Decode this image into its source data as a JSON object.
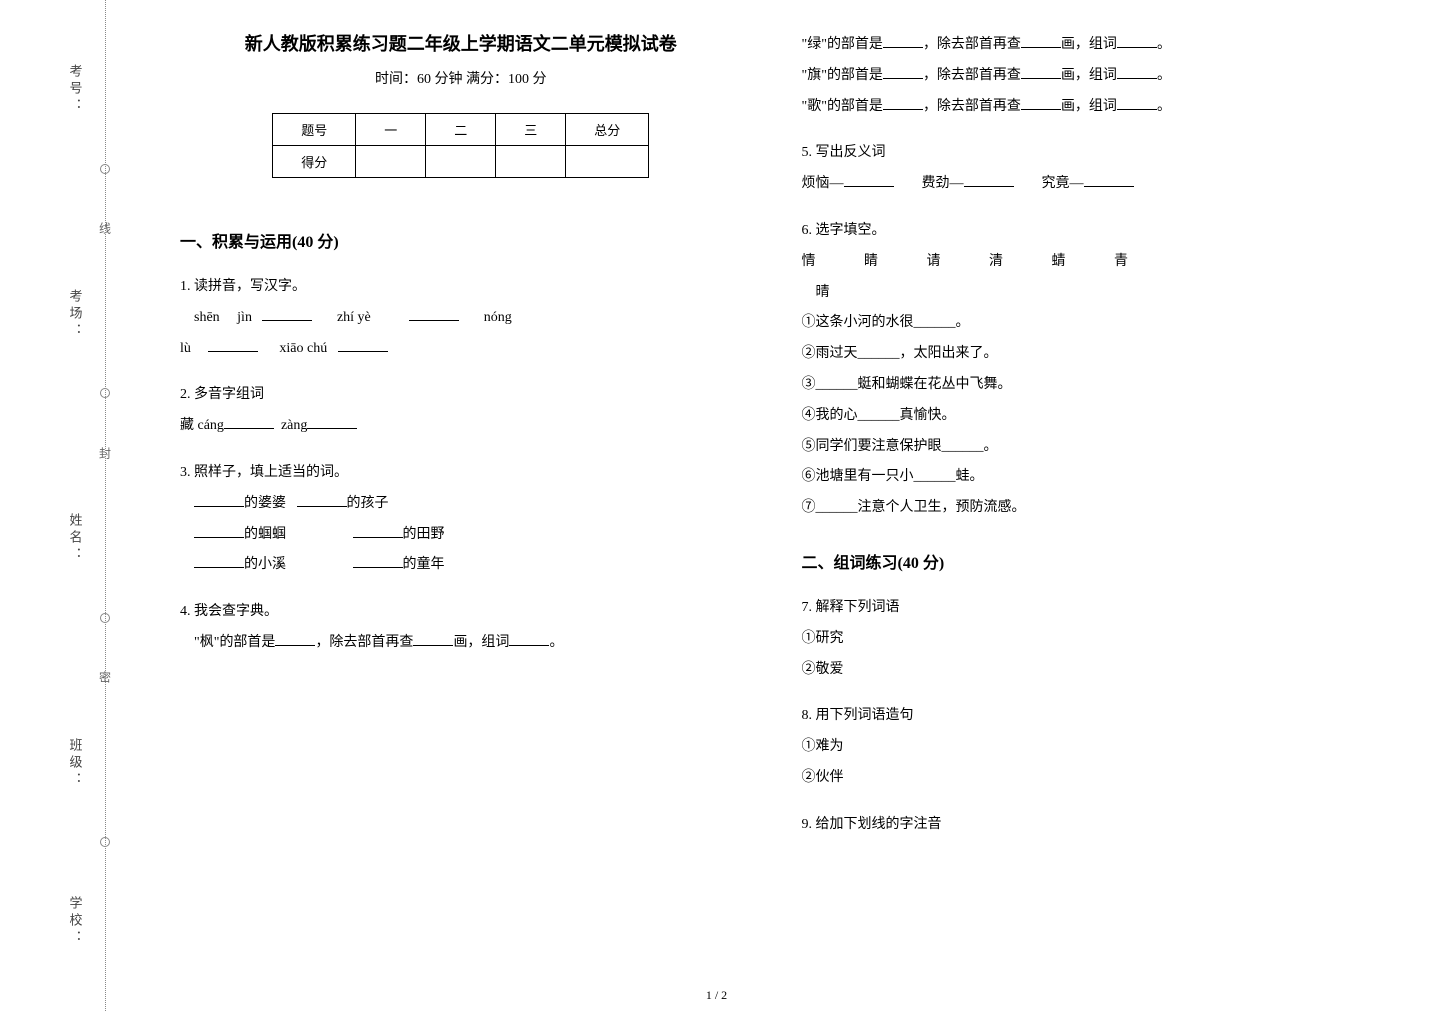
{
  "binding": {
    "labels": [
      "考号：",
      "考场：",
      "姓名：",
      "班级：",
      "学校："
    ],
    "seal_texts": [
      "线",
      "封",
      "密"
    ]
  },
  "header": {
    "title": "新人教版积累练习题二年级上学期语文二单元模拟试卷",
    "subtitle": "时间：60 分钟   满分：100 分"
  },
  "score_table": {
    "headers": [
      "题号",
      "一",
      "二",
      "三",
      "总分"
    ],
    "row_label": "得分"
  },
  "sections": {
    "s1": {
      "title": "一、积累与运用(40 分)",
      "q1": {
        "label": "1.  读拼音，写汉字。",
        "pinyin": [
          "shēn",
          "jìn",
          "zhí  yè",
          "nóng",
          "lù",
          "xiāo chú"
        ]
      },
      "q2": {
        "label": "2.  多音字组词",
        "text_prefix": "藏 cáng",
        "text_mid": "zàng"
      },
      "q3": {
        "label": "3.  照样子，填上适当的词。",
        "items": [
          "的婆婆",
          "的孩子",
          "的蝈蝈",
          "的田野",
          "的小溪",
          "的童年"
        ]
      },
      "q4": {
        "label": "4.  我会查字典。",
        "lines": [
          {
            "char": "枫",
            "p1": "的部首是",
            "p2": "，除去部首再查",
            "p3": "画，组词",
            "p4": "。"
          },
          {
            "char": "绿",
            "p1": "的部首是",
            "p2": "，除去部首再查",
            "p3": "画，组词",
            "p4": "。"
          },
          {
            "char": "旗",
            "p1": "的部首是",
            "p2": "，除去部首再查",
            "p3": "画，组词",
            "p4": "。"
          },
          {
            "char": "歌",
            "p1": "的部首是",
            "p2": "，除去部首再查",
            "p3": "画，组词",
            "p4": "。"
          }
        ]
      },
      "q5": {
        "label": "5.  写出反义词",
        "items": [
          "烦恼—",
          "费劲—",
          "究竟—"
        ]
      },
      "q6": {
        "label": "6.  选字填空。",
        "chars": [
          "情",
          "睛",
          "请",
          "清",
          "蜻",
          "青",
          "晴"
        ],
        "lines": [
          "①这条小河的水很______。",
          "②雨过天______，太阳出来了。",
          "③______蜓和蝴蝶在花丛中飞舞。",
          "④我的心______真愉快。",
          "⑤同学们要注意保护眼______。",
          "⑥池塘里有一只小______蛙。",
          "⑦______注意个人卫生，预防流感。"
        ]
      }
    },
    "s2": {
      "title": "二、组词练习(40 分)",
      "q7": {
        "label": "7.  解释下列词语",
        "items": [
          "①研究",
          "②敬爱"
        ]
      },
      "q8": {
        "label": "8.  用下列词语造句",
        "items": [
          "①难为",
          "②伙伴"
        ]
      },
      "q9": {
        "label": "9.  给加下划线的字注音"
      }
    }
  },
  "page_num": "1 / 2",
  "styling": {
    "title_fontsize": 18,
    "body_fontsize": 14,
    "section_fontsize": 16,
    "text_color": "#000000",
    "background_color": "#ffffff",
    "border_color": "#000000",
    "dotted_color": "#888888"
  }
}
